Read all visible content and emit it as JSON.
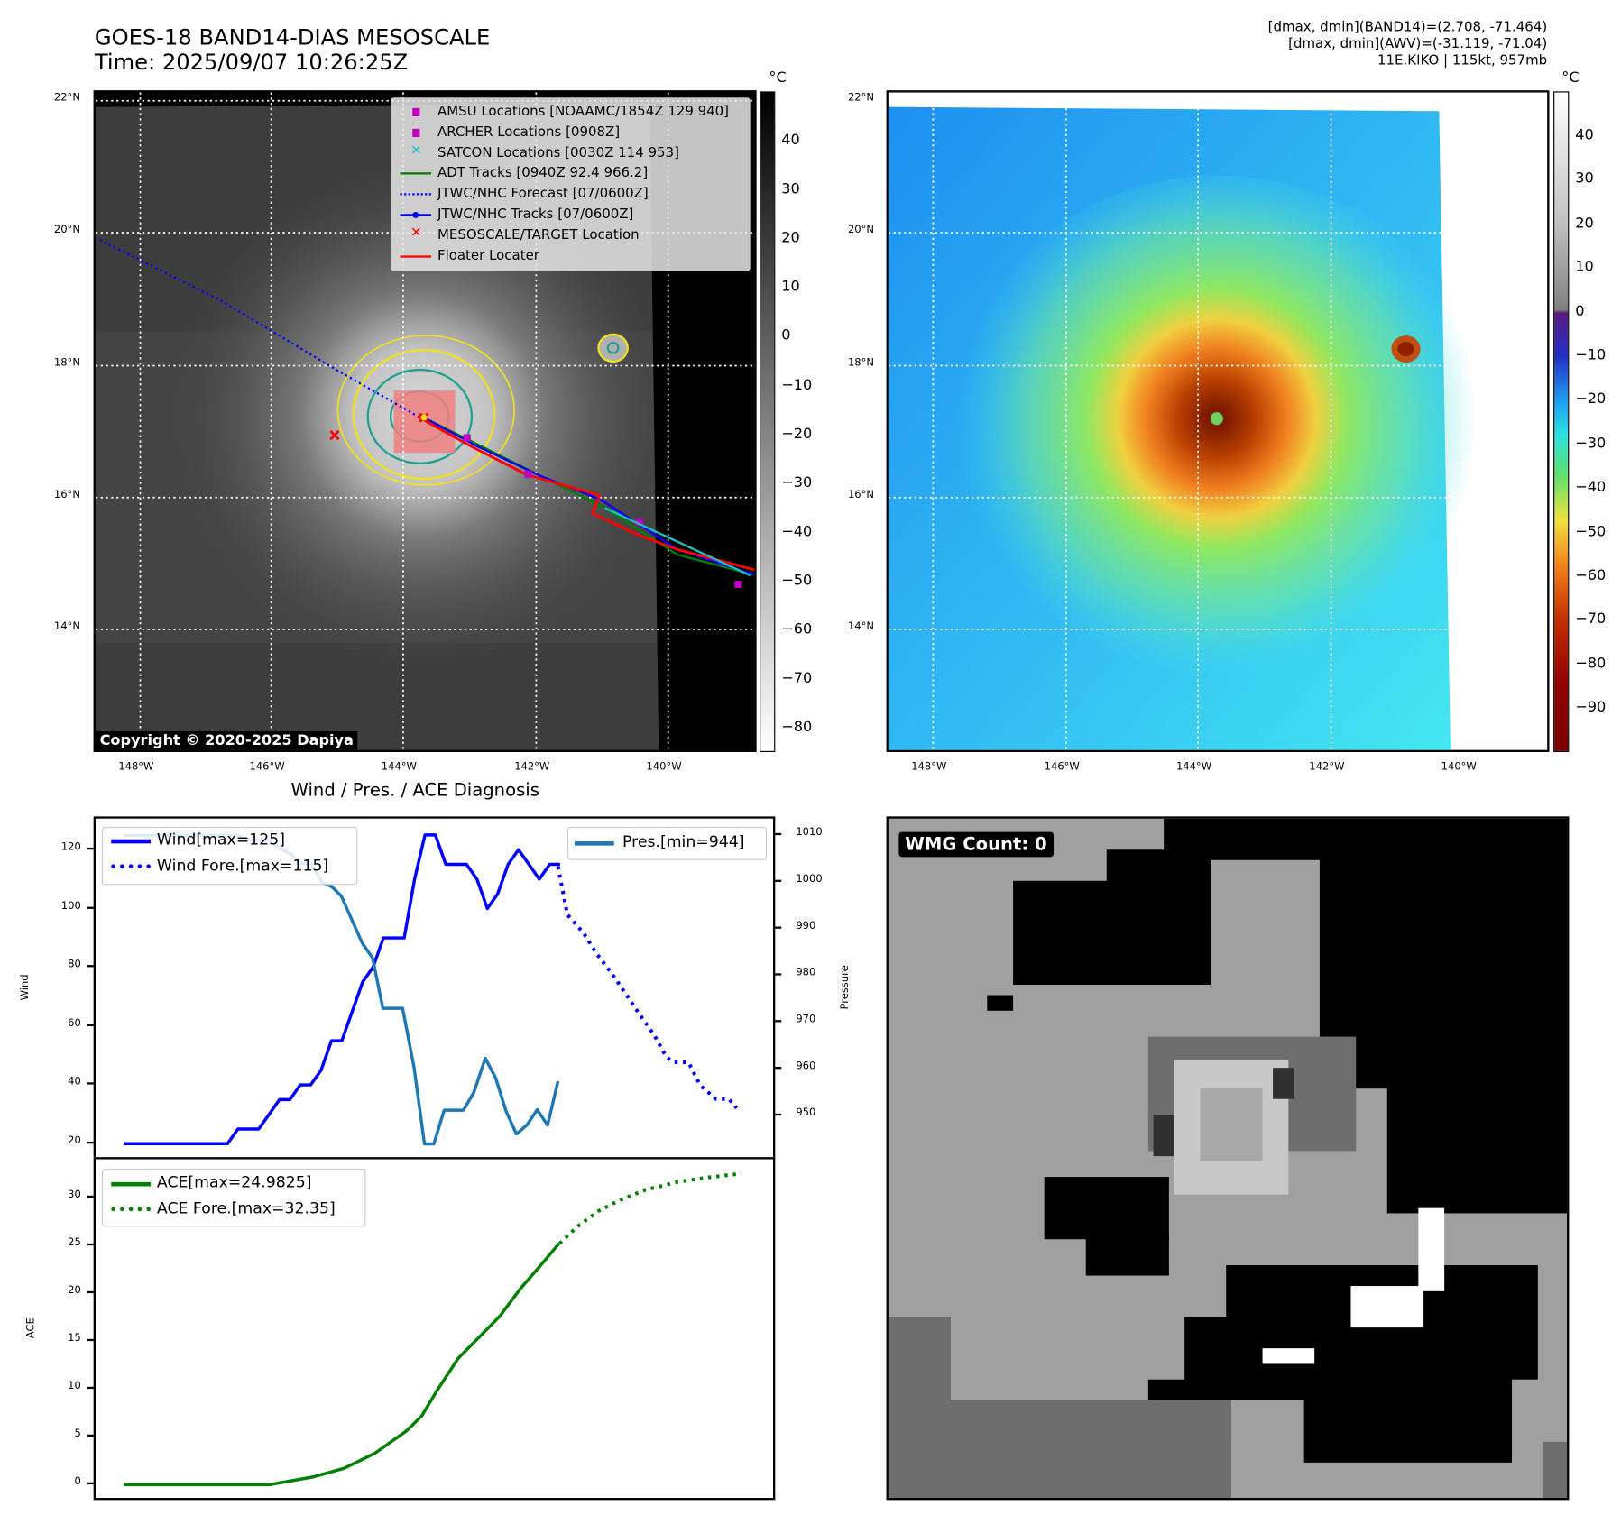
{
  "header": {
    "title_line1": "GOES-18 BAND14-DIAS MESOSCALE",
    "title_line2": "Time: 2025/09/07 10:26:25Z",
    "info_line1": "[dmax, dmin](BAND14)=(2.708, -71.464)",
    "info_line2": "[dmax, dmin](AWV)=(-31.119, -71.04)",
    "info_line3": "11E.KIKO | 115kt, 957mb"
  },
  "map": {
    "lat_labels": [
      "22°N",
      "20°N",
      "18°N",
      "16°N",
      "14°N"
    ],
    "lon_labels": [
      "148°W",
      "146°W",
      "144°W",
      "142°W",
      "140°W"
    ],
    "copyright": "Copyright © 2020-2025 Dapiya",
    "colorbar_unit": "°C",
    "left_colorbar_ticks": [
      "40",
      "30",
      "20",
      "10",
      "0",
      "−10",
      "−20",
      "−30",
      "−40",
      "−50",
      "−60",
      "−70",
      "−80"
    ],
    "right_colorbar_ticks": [
      "40",
      "30",
      "20",
      "10",
      "0",
      "−10",
      "−20",
      "−30",
      "−40",
      "−50",
      "−60",
      "−70",
      "−80",
      "−90"
    ],
    "legend": [
      {
        "label": "AMSU Locations [NOAAMC/1854Z 129 940]",
        "symbol": "square",
        "color": "#c000c0"
      },
      {
        "label": "ARCHER Locations [0908Z]",
        "symbol": "square",
        "color": "#c000c0"
      },
      {
        "label": "SATCON Locations [0030Z 114 953]",
        "symbol": "x",
        "color": "#20c0c0"
      },
      {
        "label": "ADT Tracks [0940Z 92.4 966.2]",
        "symbol": "line",
        "color": "#008000"
      },
      {
        "label": "JTWC/NHC Forecast [07/0600Z]",
        "symbol": "dotted",
        "color": "#0000ff"
      },
      {
        "label": "JTWC/NHC Tracks [07/0600Z]",
        "symbol": "line-dot",
        "color": "#0000ff"
      },
      {
        "label": "MESOSCALE/TARGET Location",
        "symbol": "x",
        "color": "#ff0000"
      },
      {
        "label": "Floater Locater",
        "symbol": "line",
        "color": "#ff0000"
      }
    ]
  },
  "wmg": {
    "label": "WMG Count: 0"
  },
  "chart_data": [
    {
      "type": "line",
      "title": "Wind / Pres. / ACE Diagnosis",
      "ylabel": "Wind",
      "y2label": "Pressure",
      "xlim": [
        -2.7,
        62.7
      ],
      "ylim": [
        14.7,
        130.6
      ],
      "y2lim": [
        940.7,
        1013.6
      ],
      "yticks": [
        20,
        40,
        60,
        80,
        100,
        120
      ],
      "y2ticks": [
        950,
        960,
        970,
        980,
        990,
        1000,
        1010
      ],
      "legend_left": [
        "Wind[max=125]",
        "Wind Fore.[max=115]"
      ],
      "legend_right": [
        "Pres.[min=944]"
      ],
      "series": [
        {
          "name": "Wind[max=125]",
          "style": "solid",
          "color": "#0000ff",
          "axis": "left",
          "x": [
            0,
            10,
            11,
            13,
            15,
            16,
            17,
            18,
            19,
            20,
            21,
            23,
            24,
            25,
            27,
            28,
            29,
            30,
            31,
            33,
            34,
            35,
            36,
            37,
            38,
            39,
            40,
            41,
            42
          ],
          "y": [
            20,
            20,
            25,
            25,
            35,
            35,
            40,
            40,
            45,
            55,
            55,
            75,
            80,
            90,
            90,
            110,
            125,
            125,
            115,
            115,
            110,
            100,
            105,
            115,
            120,
            115,
            110,
            115,
            115
          ]
        },
        {
          "name": "Wind Fore.[max=115]",
          "style": "dotted",
          "color": "#0000ff",
          "axis": "left",
          "x": [
            41.8,
            42.7,
            44.25,
            45.5,
            47,
            48.35,
            49.65,
            51.1,
            52.25,
            53,
            54.35,
            55.5,
            57,
            58.25,
            59
          ],
          "y": [
            114.3,
            97.9,
            91.7,
            84.7,
            77.8,
            70.8,
            64,
            56.7,
            49.3,
            47.7,
            47.7,
            39.8,
            35.2,
            35.2,
            32.1
          ]
        },
        {
          "name": "Pres.[min=944]",
          "style": "solid",
          "color": "#1f77b4",
          "axis": "right",
          "x": [
            0,
            10.95,
            12.1,
            13.95,
            15.2,
            16.1,
            16.95,
            18.05,
            19.05,
            20.05,
            20.95,
            22.95,
            23.95,
            24.95,
            26.85,
            27.95,
            28.95,
            29.85,
            30.85,
            32.7,
            33.7,
            34.8,
            35.8,
            36.8,
            37.8,
            38.8,
            39.8,
            40.8,
            41.8
          ],
          "y": [
            1010,
            1010,
            1009,
            1009,
            1007,
            1006,
            1004,
            1004,
            1000,
            999,
            997,
            987,
            983.8,
            973,
            973,
            960.3,
            944,
            944,
            951.2,
            951.2,
            955,
            962.3,
            958.1,
            951,
            946.1,
            948,
            951.3,
            948,
            957.4
          ]
        }
      ]
    },
    {
      "type": "line",
      "ylabel": "ACE",
      "xlim": [
        -2.7,
        62.7
      ],
      "ylim": [
        -1.6,
        34.0
      ],
      "yticks": [
        0,
        5,
        10,
        15,
        20,
        25,
        30
      ],
      "legend": [
        "ACE[max=24.9825]",
        "ACE Fore.[max=32.35]"
      ],
      "series": [
        {
          "name": "ACE[max=24.9825]",
          "style": "solid",
          "color": "#008000",
          "x": [
            0,
            14,
            18.2,
            21.2,
            24.2,
            27.2,
            28.7,
            30.2,
            32.2,
            34.2,
            36.2,
            38.2,
            40.2,
            41.9
          ],
          "y": [
            0,
            0,
            0.8,
            1.7,
            3.3,
            5.6,
            7.2,
            9.9,
            13.2,
            15.4,
            17.6,
            20.5,
            23,
            25.2
          ]
        },
        {
          "name": "ACE Fore.[max=32.35]",
          "style": "dotted",
          "color": "#008000",
          "x": [
            41.95,
            43.7,
            45.7,
            47.7,
            50.2,
            53.2,
            56.2,
            59.45
          ],
          "y": [
            25.2,
            27,
            28.6,
            29.7,
            30.8,
            31.6,
            32.1,
            32.5
          ]
        }
      ]
    }
  ]
}
